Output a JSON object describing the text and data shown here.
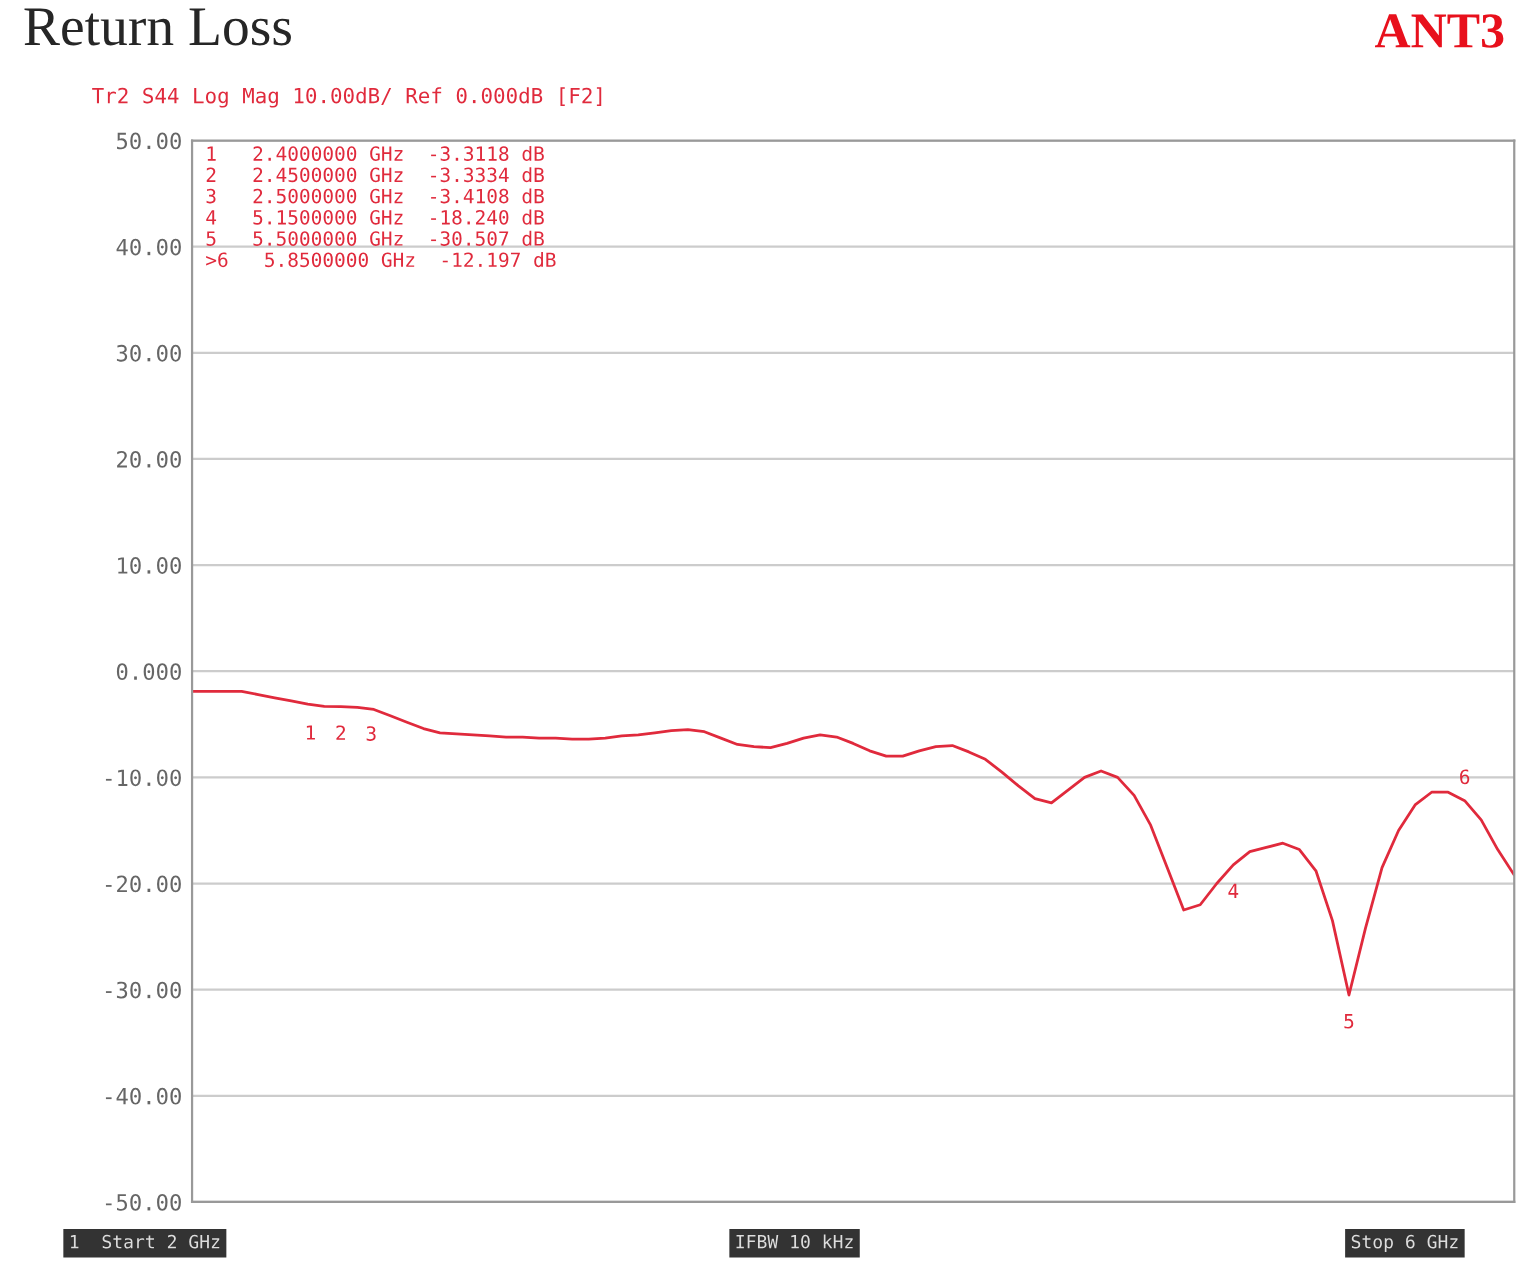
{
  "chart_data": {
    "type": "line",
    "title": "Return Loss",
    "subtitle": "Tr2 S44 Log Mag 10.00dB/ Ref 0.000dB [F2]",
    "categories": [
      null,
      null,
      null,
      null,
      null,
      null,
      null,
      null,
      null,
      null,
      null,
      null,
      null,
      null,
      null,
      null,
      null,
      null,
      null,
      null,
      null,
      null,
      null,
      null,
      null,
      null,
      null,
      null,
      null,
      null,
      null,
      null,
      null,
      null,
      null,
      null,
      null,
      null,
      null,
      null,
      null,
      null,
      null,
      null,
      null,
      null,
      null,
      null,
      null,
      null,
      null,
      null,
      null,
      null,
      null,
      null,
      null,
      null,
      null,
      null,
      null,
      null,
      null,
      null,
      null,
      null,
      null,
      null,
      null,
      null,
      null,
      null,
      null,
      null,
      null,
      null,
      null,
      null,
      null,
      null,
      null
    ],
    "series": [
      {
        "color": "#e02a3c",
        "values": [
          -1.9,
          -1.9,
          -1.9,
          -1.9,
          -2.2,
          -2.5,
          -2.8,
          -3.1,
          -3.3118,
          -3.3334,
          -3.4108,
          -3.6,
          -4.2,
          -4.8,
          -5.4,
          -5.8,
          -5.9,
          -6.0,
          -6.1,
          -6.2,
          -6.2,
          -6.3,
          -6.3,
          -6.4,
          -6.4,
          -6.3,
          -6.1,
          -6.0,
          -5.8,
          -5.6,
          -5.5,
          -5.7,
          -6.3,
          -6.9,
          -7.1,
          -7.2,
          -6.8,
          -6.3,
          -6.0,
          -6.2,
          -6.8,
          -7.5,
          -8.0,
          -8.0,
          -7.5,
          -7.1,
          -7.0,
          -7.6,
          -8.3,
          -9.5,
          -10.8,
          -12.0,
          -12.4,
          -11.2,
          -10.0,
          -9.4,
          -10.0,
          -11.7,
          -14.5,
          -18.5,
          -22.5,
          -22.0,
          -20.0,
          -18.24,
          -17.0,
          -16.6,
          -16.2,
          -16.8,
          -18.8,
          -23.5,
          -30.507,
          -24.2,
          -18.5,
          -15.0,
          -12.6,
          -11.4,
          -11.4,
          -12.197,
          -14.0,
          -16.8,
          -19.2
        ]
      }
    ],
    "ylim": [
      -50,
      50
    ],
    "yticks": [
      {
        "value": -50,
        "label": "-50.00"
      },
      {
        "value": -40,
        "label": "-40.00"
      },
      {
        "value": -30,
        "label": "-30.00"
      },
      {
        "value": -20,
        "label": "-20.00"
      },
      {
        "value": -10,
        "label": "-10.00"
      },
      {
        "value": 0,
        "label": "0.000"
      },
      {
        "value": 10,
        "label": "10.00"
      },
      {
        "value": 20,
        "label": "20.00"
      },
      {
        "value": 30,
        "label": "30.00"
      },
      {
        "value": 40,
        "label": "40.00"
      },
      {
        "value": 50,
        "label": "50.00"
      }
    ],
    "grid": "y",
    "annotations": [
      "ANT3",
      "1   2.4000000 GHz  -3.3118 dB",
      "2   2.4500000 GHz  -3.3334 dB",
      "3   2.5000000 GHz  -3.4108 dB",
      "4   5.1500000 GHz  -18.240 dB",
      "5   5.5000000 GHz  -30.507 dB",
      ">6   5.8500000 GHz  -12.197 dB",
      "1  Start 2 GHz",
      "IFBW 10 kHz",
      "Stop 6 GHz",
      {
        "text": "1",
        "y": -3.3118
      },
      {
        "text": "2",
        "y": -3.3334
      },
      {
        "text": "3",
        "y": -3.4108
      },
      {
        "text": "4",
        "y": -18.24
      },
      {
        "text": "5",
        "y": -30.507
      },
      {
        "text": "6",
        "y": -12.197
      }
    ]
  }
}
